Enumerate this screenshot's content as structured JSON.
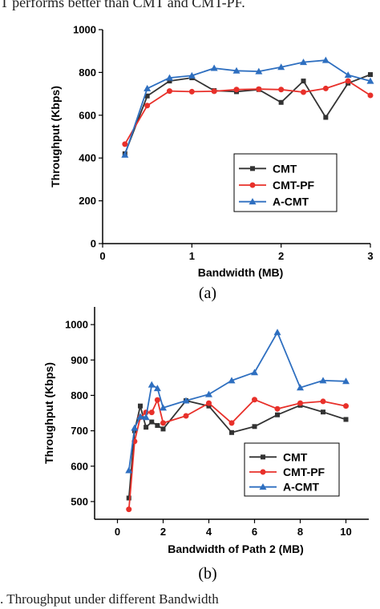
{
  "page": {
    "top_text": "T performs better than CMT and CMT-PF.",
    "caption": ".   Throughput under different Bandwidth"
  },
  "colors": {
    "CMT": "#333333",
    "CMT-PF": "#e8302a",
    "A-CMT": "#2e6fc0"
  },
  "chart_data": [
    {
      "type": "line",
      "sublabel": "(a)",
      "xlabel": "Bandwidth (MB)",
      "ylabel": "Throughput (Kbps)",
      "xlim": [
        0,
        3
      ],
      "ylim": [
        0,
        1000
      ],
      "xticks": [
        0,
        1,
        2,
        3
      ],
      "yticks": [
        0,
        200,
        400,
        600,
        800,
        1000
      ],
      "legend_position": "bottom-right",
      "series": [
        {
          "name": "CMT",
          "marker": "square",
          "x": [
            0.25,
            0.5,
            0.75,
            1.0,
            1.25,
            1.5,
            1.75,
            2.0,
            2.25,
            2.5,
            2.75,
            3.0
          ],
          "y": [
            420,
            690,
            760,
            775,
            715,
            710,
            720,
            660,
            760,
            590,
            750,
            790
          ]
        },
        {
          "name": "CMT-PF",
          "marker": "circle",
          "x": [
            0.25,
            0.5,
            0.75,
            1.0,
            1.25,
            1.5,
            1.75,
            2.0,
            2.25,
            2.5,
            2.75,
            3.0
          ],
          "y": [
            465,
            645,
            713,
            710,
            712,
            720,
            722,
            720,
            708,
            725,
            760,
            693
          ]
        },
        {
          "name": "A-CMT",
          "marker": "triangle",
          "x": [
            0.25,
            0.5,
            0.75,
            1.0,
            1.25,
            1.5,
            1.75,
            2.0,
            2.25,
            2.5,
            2.75,
            3.0
          ],
          "y": [
            415,
            725,
            775,
            785,
            820,
            808,
            805,
            825,
            848,
            857,
            788,
            760
          ]
        }
      ]
    },
    {
      "type": "line",
      "sublabel": "(b)",
      "xlabel": "Bandwidth of Path 2 (MB)",
      "ylabel": "Throughput (Kbps)",
      "xlim": [
        -1,
        11
      ],
      "ylim": [
        450,
        1050
      ],
      "xticks": [
        0,
        2,
        4,
        6,
        8,
        10
      ],
      "yticks": [
        500,
        600,
        700,
        800,
        900,
        1000
      ],
      "legend_position": "bottom-right",
      "series": [
        {
          "name": "CMT",
          "marker": "square",
          "x": [
            0.5,
            0.75,
            1.0,
            1.25,
            1.5,
            1.75,
            2.0,
            3.0,
            4.0,
            5.0,
            6.0,
            7.0,
            8.0,
            9.0,
            10.0
          ],
          "y": [
            510,
            700,
            770,
            710,
            725,
            715,
            705,
            785,
            770,
            695,
            712,
            745,
            772,
            753,
            732
          ]
        },
        {
          "name": "CMT-PF",
          "marker": "circle",
          "x": [
            0.5,
            0.75,
            1.0,
            1.25,
            1.5,
            1.75,
            2.0,
            3.0,
            4.0,
            5.0,
            6.0,
            7.0,
            8.0,
            9.0,
            10.0
          ],
          "y": [
            478,
            670,
            738,
            752,
            752,
            787,
            722,
            742,
            778,
            722,
            788,
            762,
            778,
            783,
            770
          ]
        },
        {
          "name": "A-CMT",
          "marker": "triangle",
          "x": [
            0.5,
            0.75,
            1.0,
            1.25,
            1.5,
            1.75,
            2.0,
            3.0,
            4.0,
            5.0,
            6.0,
            7.0,
            8.0,
            9.0,
            10.0
          ],
          "y": [
            588,
            708,
            740,
            738,
            830,
            820,
            765,
            785,
            803,
            842,
            865,
            978,
            822,
            842,
            840
          ]
        }
      ]
    }
  ]
}
